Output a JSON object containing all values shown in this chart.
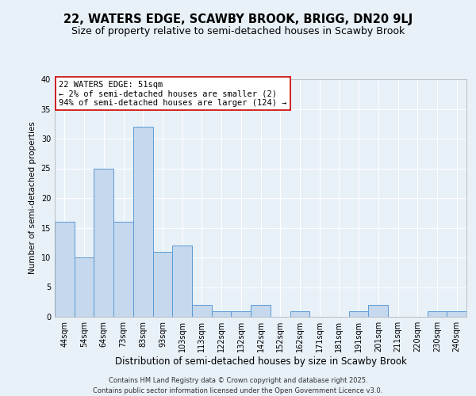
{
  "title1": "22, WATERS EDGE, SCAWBY BROOK, BRIGG, DN20 9LJ",
  "title2": "Size of property relative to semi-detached houses in Scawby Brook",
  "xlabel": "Distribution of semi-detached houses by size in Scawby Brook",
  "ylabel": "Number of semi-detached properties",
  "categories": [
    "44sqm",
    "54sqm",
    "64sqm",
    "73sqm",
    "83sqm",
    "93sqm",
    "103sqm",
    "113sqm",
    "122sqm",
    "132sqm",
    "142sqm",
    "152sqm",
    "162sqm",
    "171sqm",
    "181sqm",
    "191sqm",
    "201sqm",
    "211sqm",
    "220sqm",
    "230sqm",
    "240sqm"
  ],
  "values": [
    16,
    10,
    25,
    16,
    32,
    11,
    12,
    2,
    1,
    1,
    2,
    0,
    1,
    0,
    0,
    1,
    2,
    0,
    0,
    1,
    1
  ],
  "bar_color": "#c5d8ed",
  "bar_edge_color": "#5b9bd5",
  "annotation_text": "22 WATERS EDGE: 51sqm\n← 2% of semi-detached houses are smaller (2)\n94% of semi-detached houses are larger (124) →",
  "annotation_box_color": "#ffffff",
  "annotation_box_edge_color": "#cc0000",
  "bg_color": "#e8f0f8",
  "grid_color": "#ffffff",
  "ylim": [
    0,
    40
  ],
  "yticks": [
    0,
    5,
    10,
    15,
    20,
    25,
    30,
    35,
    40
  ],
  "footer_text": "Contains HM Land Registry data © Crown copyright and database right 2025.\nContains public sector information licensed under the Open Government Licence v3.0.",
  "title1_fontsize": 10.5,
  "title2_fontsize": 9,
  "xlabel_fontsize": 8.5,
  "ylabel_fontsize": 7.5,
  "tick_fontsize": 7,
  "annotation_fontsize": 7.5,
  "footer_fontsize": 6
}
